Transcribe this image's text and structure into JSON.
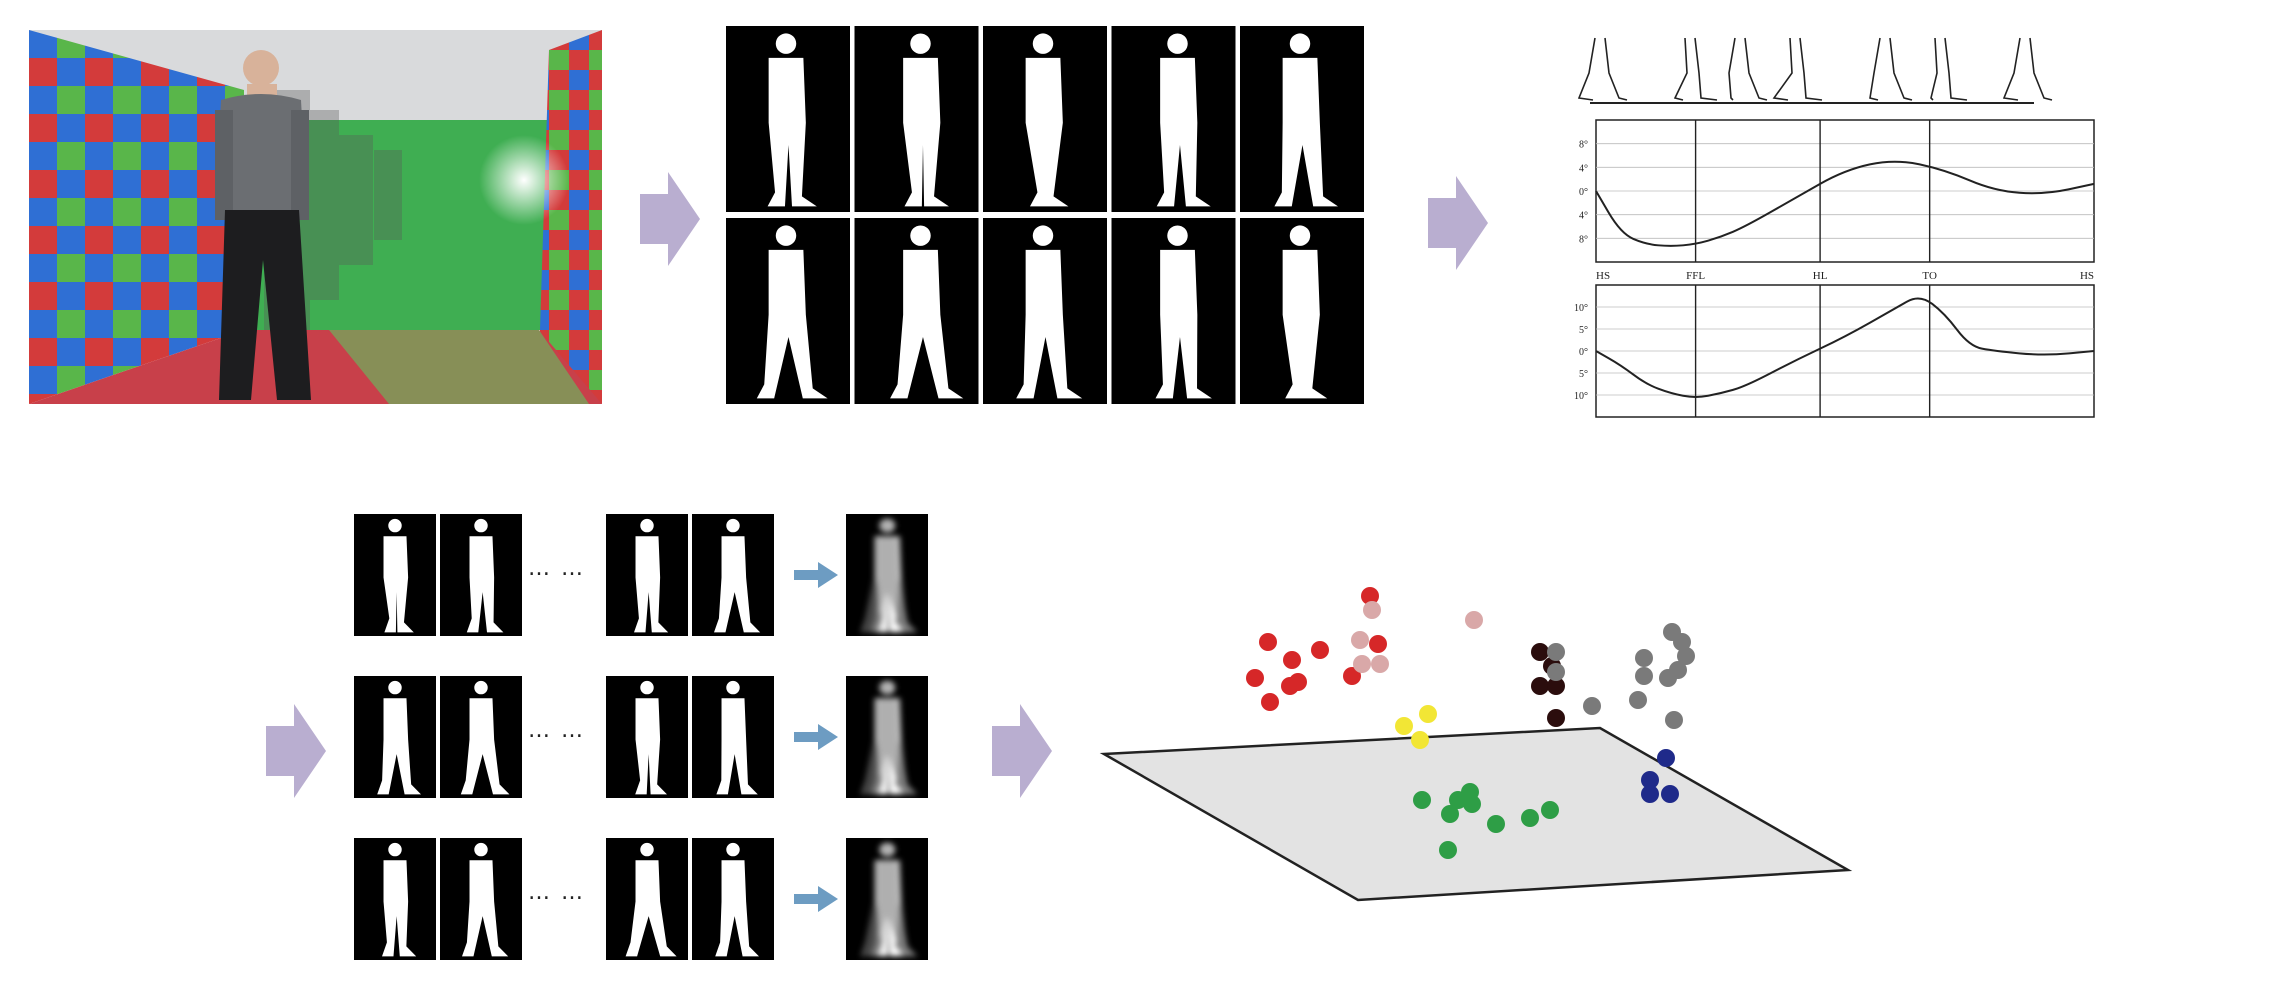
{
  "pipeline": {
    "stage1": "gait-video-frame",
    "stage2": "silhouette-sequence",
    "stage3": "gait-cycle-angle-charts",
    "stage4": "gait-energy-images",
    "stage5": "feature-space-clusters"
  },
  "chart_data": [
    {
      "type": "line",
      "title": "",
      "xlabel": "",
      "ylabel": "",
      "yticks": [
        "8°",
        "4°",
        "0°",
        "4°",
        "8°"
      ],
      "x": [
        0,
        5,
        10,
        15,
        20,
        25,
        30,
        40,
        50,
        60,
        70,
        80,
        90,
        100
      ],
      "values": [
        0,
        -6,
        -7.5,
        -7.8,
        -7.5,
        -6.5,
        -5,
        -1,
        3,
        4.5,
        3,
        0,
        -0.5,
        1
      ],
      "ylim": [
        -10,
        10
      ],
      "phase_marks": [
        20,
        45,
        67
      ]
    },
    {
      "type": "line",
      "title": "",
      "xlabel": "",
      "ylabel": "",
      "phase_labels": [
        "HS",
        "FFL",
        "HL",
        "TO",
        "HS"
      ],
      "yticks": [
        "10°",
        "5°",
        "0°",
        "5°",
        "10°"
      ],
      "x": [
        0,
        5,
        10,
        15,
        20,
        25,
        30,
        40,
        50,
        60,
        65,
        70,
        75,
        80,
        90,
        100
      ],
      "values": [
        0,
        -3,
        -7,
        -9,
        -10,
        -9,
        -7.5,
        -2,
        3,
        9,
        12,
        8,
        1,
        0,
        -1,
        0
      ],
      "ylim": [
        -14,
        14
      ],
      "phase_marks": [
        20,
        45,
        67
      ]
    }
  ],
  "clusters": {
    "red": "#d62728",
    "pink": "#d9a8a8",
    "dark": "#2b0d0d",
    "gray": "#7a7a7a",
    "yellow": "#f2e635",
    "green": "#2e9e46",
    "blue": "#1f2a8a"
  },
  "colors": {
    "arrow": "#b9aed0",
    "small_arrow": "#6d9cc2",
    "plane": "#e3e3e3"
  }
}
